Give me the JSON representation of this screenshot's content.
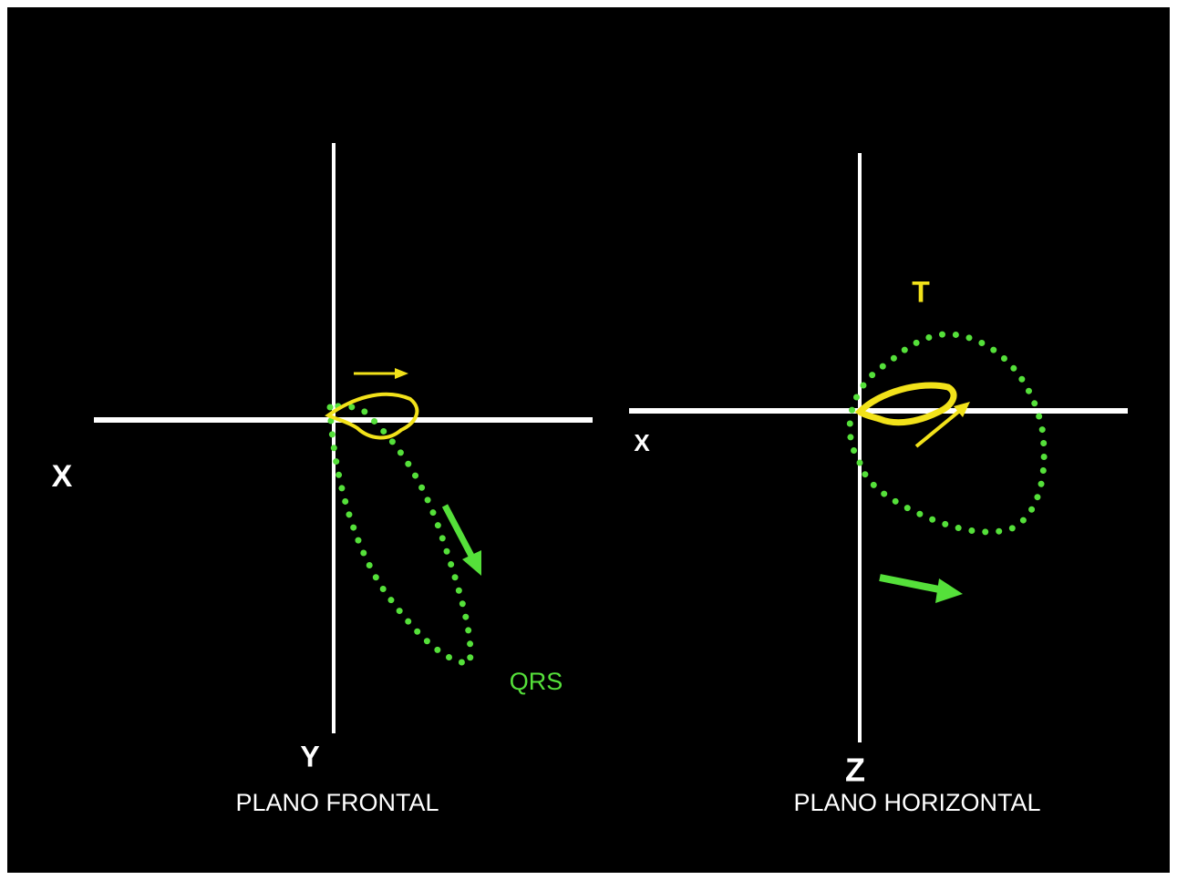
{
  "frontal": {
    "x_label": "X",
    "y_label": "Y",
    "title": "PLANO FRONTAL",
    "loop_label": "QRS"
  },
  "horizontal": {
    "x_label": "X",
    "z_label": "Z",
    "title": "PLANO HORIZONTAL",
    "loop_label": "T"
  }
}
